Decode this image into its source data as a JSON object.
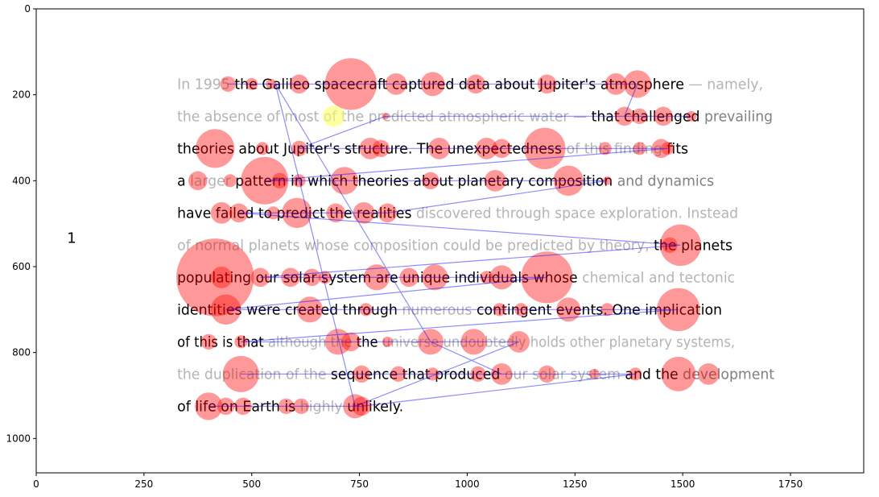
{
  "chart_data": {
    "type": "scatter",
    "title": "",
    "xlabel": "",
    "ylabel": "",
    "xlim": [
      0,
      1920
    ],
    "ylim": [
      1080,
      0
    ],
    "y_inverted": true,
    "grid": false,
    "x_ticks": [
      "0",
      "250",
      "500",
      "750",
      "1000",
      "1250",
      "1500",
      "1750"
    ],
    "y_ticks": [
      "0",
      "200",
      "400",
      "600",
      "800",
      "1000"
    ],
    "stimulus_label": "1",
    "stimulus_lines": [
      {
        "y": 175,
        "segments": [
          {
            "text": "In 1995 ",
            "style": "unread"
          },
          {
            "text": "the Galileo spacecraft captured data about Jupiter's atmosphere",
            "style": "read"
          },
          {
            "text": " — namely,",
            "style": "unread"
          }
        ]
      },
      {
        "y": 250,
        "segments": [
          {
            "text": "the absence of most of the predicted atmospheric water — ",
            "style": "unread"
          },
          {
            "text": "that challenged",
            "style": "read"
          },
          {
            "text": " prevailing",
            "style": "partial"
          }
        ]
      },
      {
        "y": 325,
        "segments": [
          {
            "text": "theories about Jupiter's structure. The unexpectedness",
            "style": "read"
          },
          {
            "text": " of this finding ",
            "style": "unread"
          },
          {
            "text": "fits",
            "style": "read"
          }
        ]
      },
      {
        "y": 400,
        "segments": [
          {
            "text": "a ",
            "style": "read"
          },
          {
            "text": "larger ",
            "style": "unread"
          },
          {
            "text": "pattern in which theories about planetary composition",
            "style": "read"
          },
          {
            "text": " and dynamics",
            "style": "partial"
          }
        ]
      },
      {
        "y": 475,
        "segments": [
          {
            "text": "have failed to predict the realities",
            "style": "read"
          },
          {
            "text": " discovered through space exploration. Instead",
            "style": "unread"
          }
        ]
      },
      {
        "y": 550,
        "segments": [
          {
            "text": "of normal planets whose composition could be predicted by theory, ",
            "style": "unread"
          },
          {
            "text": "the planets",
            "style": "read"
          }
        ]
      },
      {
        "y": 625,
        "segments": [
          {
            "text": "populating our solar system are unique individuals whose",
            "style": "read"
          },
          {
            "text": " chemical and tectonic",
            "style": "unread"
          }
        ]
      },
      {
        "y": 700,
        "segments": [
          {
            "text": "identities were created through ",
            "style": "read"
          },
          {
            "text": "numerous",
            "style": "unread"
          },
          {
            "text": " contingent events. One implication",
            "style": "read"
          }
        ]
      },
      {
        "y": 775,
        "segments": [
          {
            "text": "of this is that ",
            "style": "read"
          },
          {
            "text": "although the ",
            "style": "unread"
          },
          {
            "text": "the",
            "style": "read"
          },
          {
            "text": " universe undoubtedly holds other planetary systems,",
            "style": "unread"
          }
        ]
      },
      {
        "y": 850,
        "segments": [
          {
            "text": "the duplication of the ",
            "style": "unread"
          },
          {
            "text": "sequence that produced",
            "style": "read"
          },
          {
            "text": " our solar system ",
            "style": "unread"
          },
          {
            "text": "and the ",
            "style": "read"
          },
          {
            "text": "development",
            "style": "partial"
          }
        ]
      },
      {
        "y": 925,
        "segments": [
          {
            "text": "of life on Earth is",
            "style": "read"
          },
          {
            "text": " highly ",
            "style": "unread"
          },
          {
            "text": "unlikely.",
            "style": "read"
          }
        ]
      }
    ],
    "fixations": [
      {
        "x": 445,
        "y": 175,
        "d": 18
      },
      {
        "x": 500,
        "y": 175,
        "d": 14
      },
      {
        "x": 545,
        "y": 175,
        "d": 12
      },
      {
        "x": 610,
        "y": 175,
        "d": 22
      },
      {
        "x": 730,
        "y": 175,
        "d": 60
      },
      {
        "x": 835,
        "y": 175,
        "d": 25
      },
      {
        "x": 920,
        "y": 175,
        "d": 28
      },
      {
        "x": 1020,
        "y": 175,
        "d": 22
      },
      {
        "x": 1185,
        "y": 175,
        "d": 22
      },
      {
        "x": 1345,
        "y": 175,
        "d": 25
      },
      {
        "x": 1395,
        "y": 175,
        "d": 32
      },
      {
        "x": 1365,
        "y": 250,
        "d": 22
      },
      {
        "x": 1400,
        "y": 250,
        "d": 18
      },
      {
        "x": 1455,
        "y": 250,
        "d": 22
      },
      {
        "x": 1520,
        "y": 250,
        "d": 12
      },
      {
        "x": 810,
        "y": 250,
        "d": 8
      },
      {
        "x": 415,
        "y": 325,
        "d": 45
      },
      {
        "x": 525,
        "y": 325,
        "d": 15
      },
      {
        "x": 610,
        "y": 325,
        "d": 18
      },
      {
        "x": 775,
        "y": 325,
        "d": 25
      },
      {
        "x": 800,
        "y": 325,
        "d": 20
      },
      {
        "x": 935,
        "y": 325,
        "d": 25
      },
      {
        "x": 1045,
        "y": 325,
        "d": 25
      },
      {
        "x": 1080,
        "y": 325,
        "d": 22
      },
      {
        "x": 1180,
        "y": 325,
        "d": 48
      },
      {
        "x": 1320,
        "y": 325,
        "d": 15
      },
      {
        "x": 1400,
        "y": 325,
        "d": 15
      },
      {
        "x": 1450,
        "y": 325,
        "d": 22
      },
      {
        "x": 1465,
        "y": 325,
        "d": 15
      },
      {
        "x": 375,
        "y": 400,
        "d": 22
      },
      {
        "x": 450,
        "y": 400,
        "d": 15
      },
      {
        "x": 530,
        "y": 400,
        "d": 55
      },
      {
        "x": 565,
        "y": 400,
        "d": 18
      },
      {
        "x": 610,
        "y": 400,
        "d": 15
      },
      {
        "x": 715,
        "y": 400,
        "d": 32
      },
      {
        "x": 915,
        "y": 400,
        "d": 20
      },
      {
        "x": 1065,
        "y": 400,
        "d": 25
      },
      {
        "x": 1235,
        "y": 400,
        "d": 35
      },
      {
        "x": 1325,
        "y": 400,
        "d": 10
      },
      {
        "x": 430,
        "y": 475,
        "d": 25
      },
      {
        "x": 470,
        "y": 475,
        "d": 22
      },
      {
        "x": 550,
        "y": 475,
        "d": 15
      },
      {
        "x": 605,
        "y": 475,
        "d": 35
      },
      {
        "x": 695,
        "y": 475,
        "d": 22
      },
      {
        "x": 760,
        "y": 475,
        "d": 25
      },
      {
        "x": 815,
        "y": 475,
        "d": 22
      },
      {
        "x": 1470,
        "y": 550,
        "d": 18
      },
      {
        "x": 1495,
        "y": 550,
        "d": 48
      },
      {
        "x": 415,
        "y": 625,
        "d": 90
      },
      {
        "x": 430,
        "y": 625,
        "d": 25
      },
      {
        "x": 520,
        "y": 625,
        "d": 22
      },
      {
        "x": 590,
        "y": 625,
        "d": 22
      },
      {
        "x": 640,
        "y": 625,
        "d": 20
      },
      {
        "x": 670,
        "y": 625,
        "d": 15
      },
      {
        "x": 790,
        "y": 625,
        "d": 30
      },
      {
        "x": 865,
        "y": 625,
        "d": 22
      },
      {
        "x": 925,
        "y": 625,
        "d": 30
      },
      {
        "x": 1045,
        "y": 625,
        "d": 15
      },
      {
        "x": 1080,
        "y": 625,
        "d": 28
      },
      {
        "x": 1185,
        "y": 625,
        "d": 60
      },
      {
        "x": 440,
        "y": 700,
        "d": 35
      },
      {
        "x": 635,
        "y": 700,
        "d": 30
      },
      {
        "x": 765,
        "y": 700,
        "d": 15
      },
      {
        "x": 1075,
        "y": 700,
        "d": 15
      },
      {
        "x": 1125,
        "y": 700,
        "d": 15
      },
      {
        "x": 1235,
        "y": 700,
        "d": 28
      },
      {
        "x": 1325,
        "y": 700,
        "d": 15
      },
      {
        "x": 1490,
        "y": 700,
        "d": 50
      },
      {
        "x": 400,
        "y": 775,
        "d": 18
      },
      {
        "x": 475,
        "y": 775,
        "d": 15
      },
      {
        "x": 700,
        "y": 775,
        "d": 30
      },
      {
        "x": 730,
        "y": 775,
        "d": 22
      },
      {
        "x": 815,
        "y": 775,
        "d": 12
      },
      {
        "x": 915,
        "y": 775,
        "d": 30
      },
      {
        "x": 1015,
        "y": 775,
        "d": 30
      },
      {
        "x": 1120,
        "y": 775,
        "d": 25
      },
      {
        "x": 475,
        "y": 850,
        "d": 42
      },
      {
        "x": 755,
        "y": 850,
        "d": 20
      },
      {
        "x": 840,
        "y": 850,
        "d": 18
      },
      {
        "x": 920,
        "y": 850,
        "d": 15
      },
      {
        "x": 1025,
        "y": 850,
        "d": 18
      },
      {
        "x": 1080,
        "y": 850,
        "d": 25
      },
      {
        "x": 1185,
        "y": 850,
        "d": 20
      },
      {
        "x": 1295,
        "y": 850,
        "d": 12
      },
      {
        "x": 1390,
        "y": 850,
        "d": 15
      },
      {
        "x": 1490,
        "y": 850,
        "d": 40
      },
      {
        "x": 1560,
        "y": 850,
        "d": 25
      },
      {
        "x": 400,
        "y": 925,
        "d": 32
      },
      {
        "x": 440,
        "y": 925,
        "d": 20
      },
      {
        "x": 480,
        "y": 925,
        "d": 20
      },
      {
        "x": 580,
        "y": 925,
        "d": 18
      },
      {
        "x": 615,
        "y": 925,
        "d": 18
      },
      {
        "x": 740,
        "y": 925,
        "d": 28
      },
      {
        "x": 755,
        "y": 925,
        "d": 22
      }
    ],
    "scanpath": [
      [
        445,
        175
      ],
      [
        500,
        175
      ],
      [
        545,
        175
      ],
      [
        610,
        175
      ],
      [
        730,
        175
      ],
      [
        835,
        175
      ],
      [
        920,
        175
      ],
      [
        1020,
        175
      ],
      [
        1185,
        175
      ],
      [
        1345,
        175
      ],
      [
        1395,
        175
      ],
      [
        1365,
        250
      ],
      [
        1520,
        250
      ],
      [
        810,
        250
      ],
      [
        610,
        325
      ],
      [
        800,
        325
      ],
      [
        1180,
        325
      ],
      [
        1400,
        325
      ],
      [
        1465,
        325
      ],
      [
        530,
        400
      ],
      [
        1325,
        400
      ],
      [
        815,
        475
      ],
      [
        470,
        475
      ],
      [
        1495,
        550
      ],
      [
        520,
        625
      ],
      [
        1185,
        625
      ],
      [
        440,
        700
      ],
      [
        1490,
        700
      ],
      [
        475,
        775
      ],
      [
        1120,
        775
      ],
      [
        740,
        925
      ],
      [
        555,
        175
      ],
      [
        915,
        775
      ],
      [
        1080,
        850
      ],
      [
        475,
        850
      ],
      [
        1390,
        850
      ],
      [
        755,
        925
      ],
      [
        400,
        925
      ]
    ],
    "highlight": {
      "x": 690,
      "y": 250,
      "d": 25,
      "color": "#ffff66"
    },
    "colors": {
      "fixation": "#ff0000",
      "scanpath": "#0000ff",
      "highlight": "#ffff66"
    }
  }
}
